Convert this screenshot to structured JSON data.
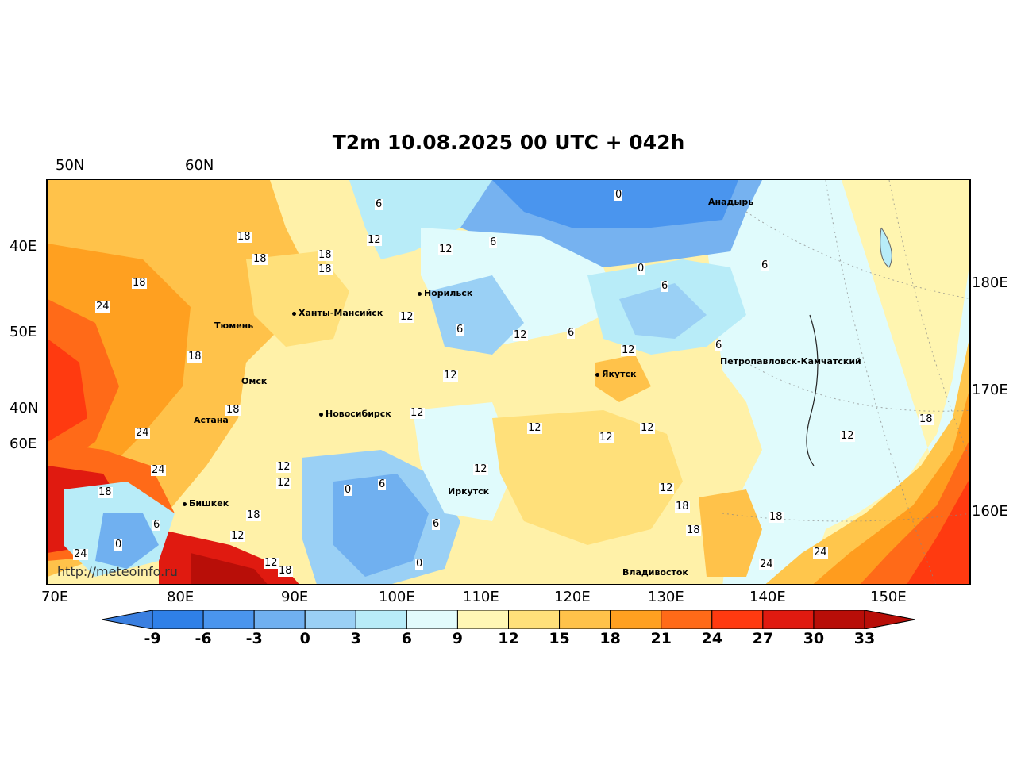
{
  "title": "T2m 10.08.2025 00 UTC + 042h",
  "grid_labels": {
    "top": [
      "50N",
      "60N"
    ],
    "left": [
      "40E",
      "50E",
      "40N",
      "60E"
    ],
    "right": [
      "180E",
      "170E",
      "160E"
    ],
    "bottom": [
      "70E",
      "80E",
      "90E",
      "100E",
      "110E",
      "120E",
      "130E",
      "140E",
      "150E"
    ]
  },
  "cities": [
    "Анадырь",
    "Норильск",
    "Ханты-Мансийск",
    "Тюмень",
    "Омск",
    "Астана",
    "Новосибирск",
    "Якутск",
    "Петропавловск-Камчатский",
    "Иркутск",
    "Бишкек",
    "Владивосток"
  ],
  "contour_labels": [
    "0",
    "6",
    "6",
    "12",
    "12",
    "18",
    "18",
    "18",
    "24",
    "18",
    "18",
    "12",
    "6",
    "12",
    "6",
    "12",
    "18",
    "24",
    "18",
    "12",
    "0",
    "6",
    "0",
    "6",
    "12",
    "12",
    "12",
    "12",
    "12",
    "6",
    "24",
    "18",
    "6",
    "18",
    "12",
    "18",
    "0",
    "12",
    "24",
    "18",
    "12",
    "12",
    "6",
    "6",
    "0",
    "18",
    "18",
    "24",
    "24",
    "12",
    "12",
    "18"
  ],
  "watermark": "http://meteoinfo.ru",
  "colorbar": {
    "ticks": [
      "-9",
      "-6",
      "-3",
      "0",
      "3",
      "6",
      "9",
      "12",
      "15",
      "18",
      "21",
      "24",
      "27",
      "30",
      "33"
    ],
    "colors": [
      "#3a7fe0",
      "#2f80e8",
      "#4a95ee",
      "#70b0f0",
      "#9ad0f5",
      "#b8ecf8",
      "#e2fbfc",
      "#fff7b5",
      "#ffe07a",
      "#ffc24a",
      "#ffa020",
      "#ff6a18",
      "#ff3a10",
      "#e01a10",
      "#b80e08"
    ]
  }
}
